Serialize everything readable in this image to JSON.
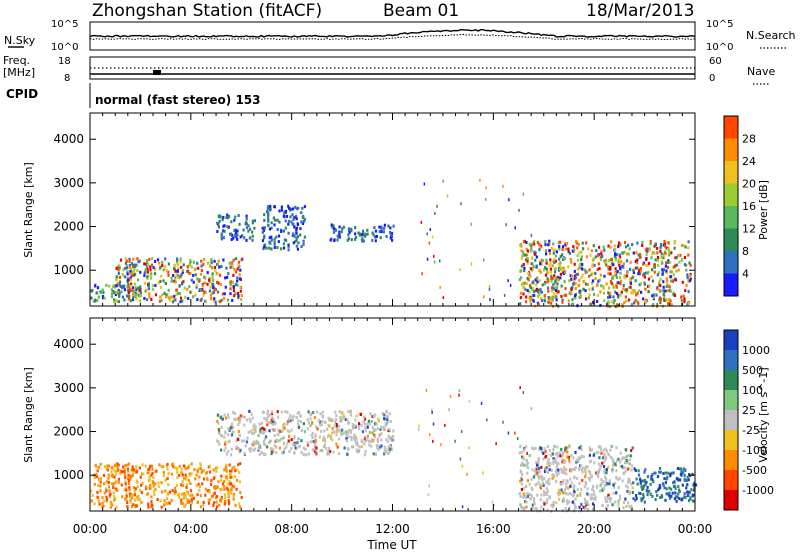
{
  "header": {
    "station": "Zhongshan Station (fitACF)",
    "beam": "Beam 01",
    "date": "18/Mar/2013"
  },
  "params_panel": {
    "left_label_top": "N.Sky",
    "left_label_bottom_1": "Freq.",
    "left_label_bottom_2": "[MHz]",
    "cpid_label": "CPID",
    "right_label_top": "N.Search",
    "right_label_bottom": "Nave",
    "left_ticks_top": [
      "10^5",
      "10^0"
    ],
    "right_ticks_top": [
      "10^5",
      "10^0"
    ],
    "left_ticks_bottom": [
      "18",
      "8"
    ],
    "right_ticks_bottom": [
      "60",
      "0"
    ],
    "cpid_text": "normal (fast stereo) 153"
  },
  "colors": {
    "power_scale": [
      "#1a1aff",
      "#2f6fbf",
      "#2e8b57",
      "#5cb85c",
      "#9acd32",
      "#f0c020",
      "#ff8c00",
      "#ff4500",
      "#e00000"
    ],
    "velocity_scale": [
      "#1a3fbf",
      "#2f6fbf",
      "#2e8b57",
      "#7fc97f",
      "#c0c0c0",
      "#f0c020",
      "#ff8c00",
      "#ff4500",
      "#e00000"
    ]
  },
  "chart_data": [
    {
      "type": "heatmap",
      "title": "Power",
      "xlabel": "",
      "ylabel": "Slant Range [km]",
      "xlim": [
        "00:00",
        "24:00"
      ],
      "ylim": [
        180,
        4600
      ],
      "yticks": [
        "1000",
        "2000",
        "3000",
        "4000"
      ],
      "colorbar": {
        "label": "Power [dB]",
        "ticks": [
          "4",
          "8",
          "12",
          "16",
          "20",
          "24",
          "28"
        ]
      },
      "regions": [
        {
          "t0": 0.0,
          "t1": 2.0,
          "r0": 300,
          "r1": 700,
          "level": "low-mid"
        },
        {
          "t0": 1.0,
          "t1": 6.0,
          "r0": 300,
          "r1": 1300,
          "level": "mid-high"
        },
        {
          "t0": 5.0,
          "t1": 6.5,
          "r0": 1700,
          "r1": 2300,
          "level": "low"
        },
        {
          "t0": 6.8,
          "t1": 8.5,
          "r0": 1500,
          "r1": 2500,
          "level": "low"
        },
        {
          "t0": 9.5,
          "t1": 12.0,
          "r0": 1700,
          "r1": 2100,
          "level": "low"
        },
        {
          "t0": 17.0,
          "t1": 23.8,
          "r0": 200,
          "r1": 1700,
          "level": "mid-high"
        }
      ]
    },
    {
      "type": "heatmap",
      "title": "Velocity",
      "xlabel": "Time UT",
      "ylabel": "Slant Range [km]",
      "xlim": [
        "00:00",
        "24:00"
      ],
      "ylim": [
        180,
        4600
      ],
      "xticks": [
        "00:00",
        "04:00",
        "08:00",
        "12:00",
        "16:00",
        "20:00",
        "00:00"
      ],
      "yticks": [
        "1000",
        "2000",
        "3000",
        "4000"
      ],
      "colorbar": {
        "label": "Velocity [m s^-1]",
        "ticks": [
          "1000",
          "500",
          "100",
          "25",
          "-25",
          "-100",
          "-500",
          "-1000"
        ]
      },
      "regions": [
        {
          "t0": 0.0,
          "t1": 6.0,
          "r0": 300,
          "r1": 1300,
          "level": "-100 to -500"
        },
        {
          "t0": 5.0,
          "t1": 12.0,
          "r0": 1500,
          "r1": 2500,
          "level": "-25 to 25"
        },
        {
          "t0": 17.0,
          "t1": 21.5,
          "r0": 200,
          "r1": 1700,
          "level": "-25 to 25"
        },
        {
          "t0": 21.5,
          "t1": 24.0,
          "r0": 400,
          "r1": 1200,
          "level": "100 to 1000"
        }
      ]
    }
  ],
  "time_axis": {
    "label": "Time UT",
    "ticks": [
      "00:00",
      "04:00",
      "08:00",
      "12:00",
      "16:00",
      "20:00",
      "00:00"
    ]
  }
}
